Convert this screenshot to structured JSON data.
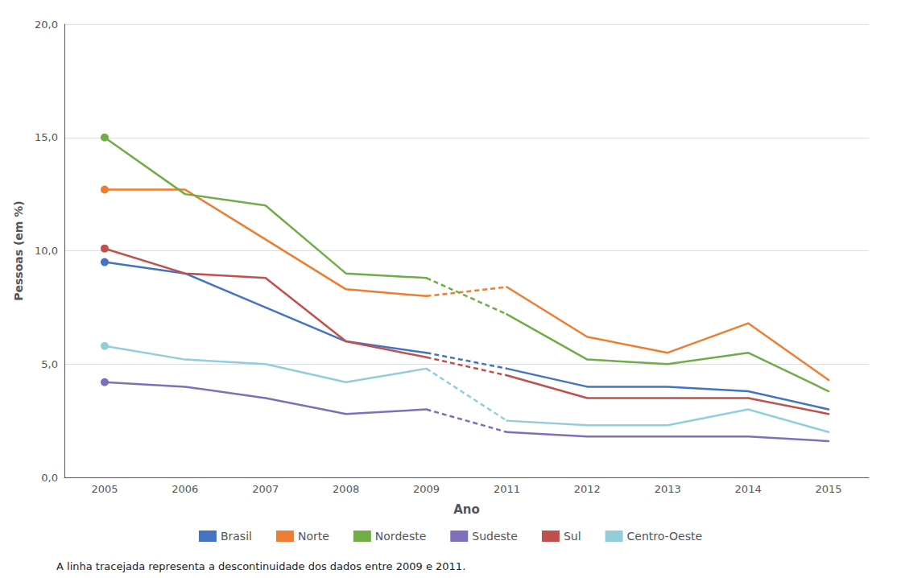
{
  "chart_data": {
    "type": "line",
    "xlabel": "Ano",
    "ylabel": "Pessoas (em %)",
    "annotations": [
      "A linha tracejada representa a descontinuidade dos dados entre 2009 e 2011."
    ],
    "categories": [
      "2005",
      "2006",
      "2007",
      "2008",
      "2009",
      "2011",
      "2012",
      "2013",
      "2014",
      "2015"
    ],
    "series": [
      {
        "name": "Brasil",
        "color": "#4472C4",
        "line_style": "solid",
        "marker": "circle",
        "values": [
          9.5,
          9.0,
          7.5,
          6.0,
          5.5,
          4.8,
          4.0,
          4.0,
          3.8,
          3.0
        ]
      },
      {
        "name": "Norte",
        "color": "#ED7D31",
        "line_style": "solid",
        "marker": "circle",
        "values": [
          12.7,
          12.7,
          10.5,
          8.3,
          8.0,
          8.4,
          6.2,
          5.5,
          6.8,
          4.3
        ]
      },
      {
        "name": "Nordeste",
        "color": "#70AD47",
        "line_style": "solid",
        "marker": "circle",
        "values": [
          15.0,
          12.5,
          12.0,
          9.0,
          8.8,
          7.2,
          5.2,
          5.0,
          5.5,
          3.8
        ]
      },
      {
        "name": "Sudeste",
        "color": "#7F6FBA",
        "line_style": "solid",
        "marker": "circle",
        "values": [
          4.2,
          4.0,
          3.5,
          2.8,
          3.0,
          2.0,
          1.8,
          1.8,
          1.8,
          1.6
        ]
      },
      {
        "name": "Sul",
        "color": "#C0504D",
        "line_style": "solid",
        "marker": "circle",
        "values": [
          10.1,
          9.0,
          8.8,
          6.0,
          5.3,
          4.5,
          3.5,
          3.5,
          3.5,
          2.8
        ]
      },
      {
        "name": "Centro-Oeste",
        "color": "#92CDDC",
        "line_style": "solid",
        "marker": "circle",
        "values": [
          5.8,
          5.2,
          5.0,
          4.2,
          4.8,
          2.5,
          2.3,
          2.3,
          3.0,
          2.0
        ]
      }
    ],
    "ylim": [
      0,
      20.0
    ],
    "yticks": [
      {
        "value": 0.0,
        "label": "0,0"
      },
      {
        "value": 5.0,
        "label": "5,0"
      },
      {
        "value": 10.0,
        "label": "10,0"
      },
      {
        "value": 15.0,
        "label": "15,0"
      },
      {
        "value": 20.0,
        "label": "20,0"
      }
    ],
    "grid": true,
    "legend": "bottom"
  }
}
